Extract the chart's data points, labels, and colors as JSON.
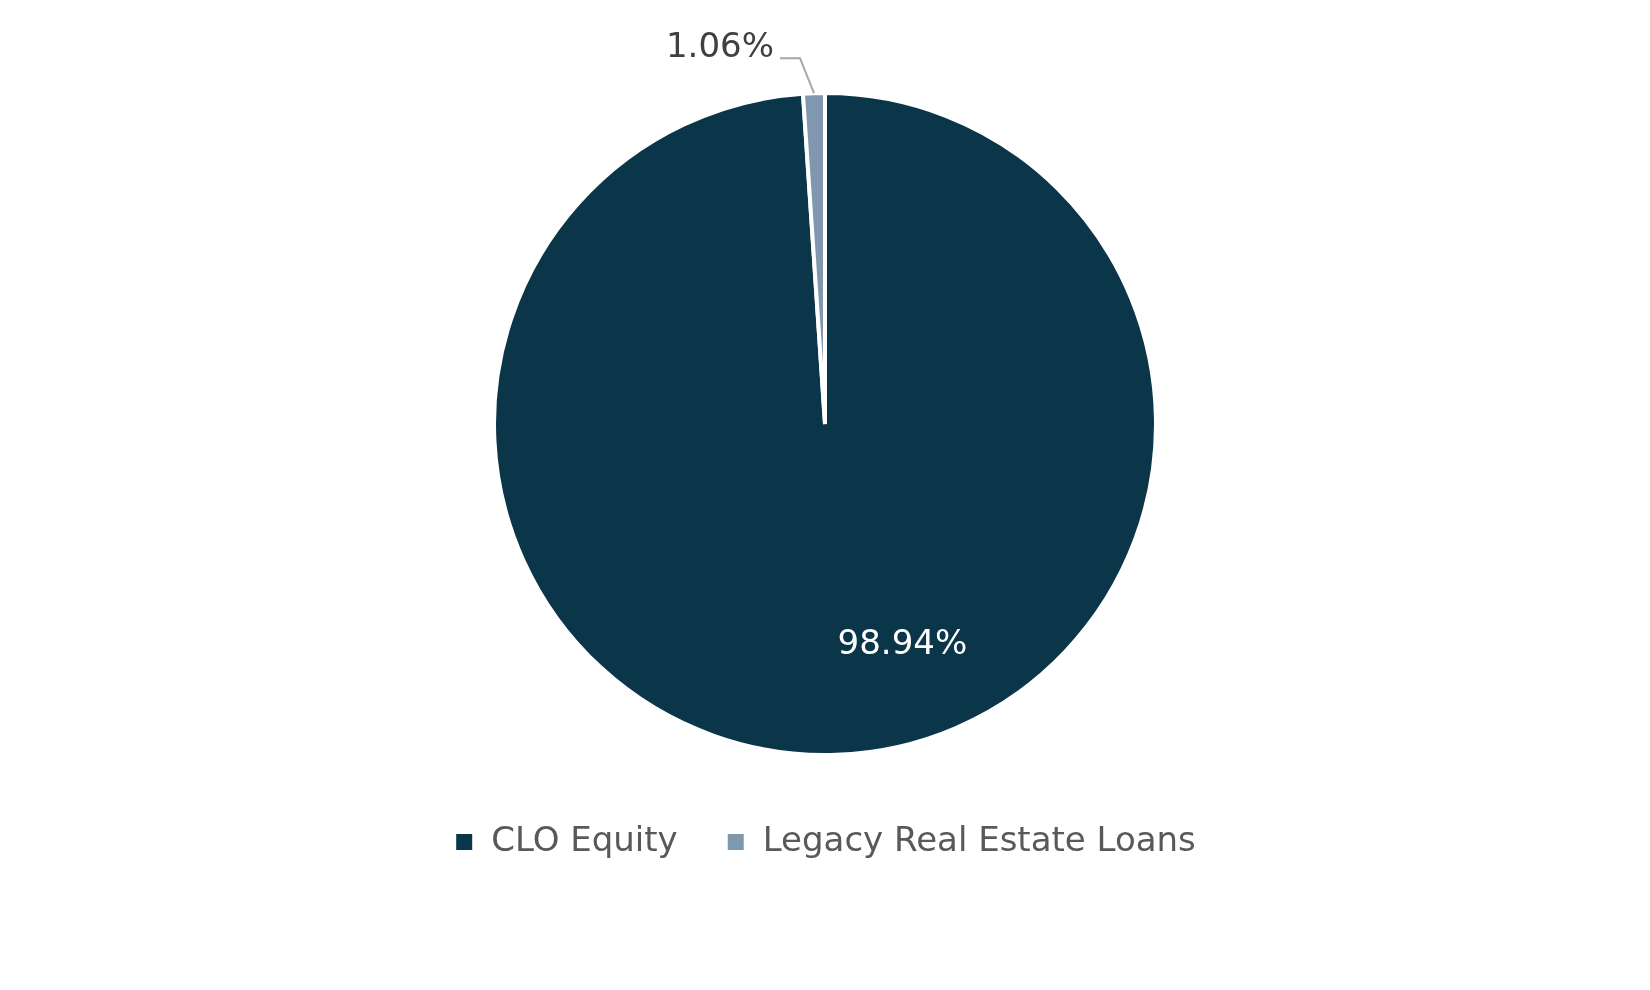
{
  "chart_data": {
    "type": "pie",
    "categories": [
      "CLO Equity",
      "Legacy Real Estate Loans"
    ],
    "values": [
      98.94,
      1.06
    ],
    "colors": [
      "#0b3549",
      "#7f98ad"
    ],
    "value_labels": [
      "98.94%",
      "1.06%"
    ],
    "legend": "bottom"
  }
}
